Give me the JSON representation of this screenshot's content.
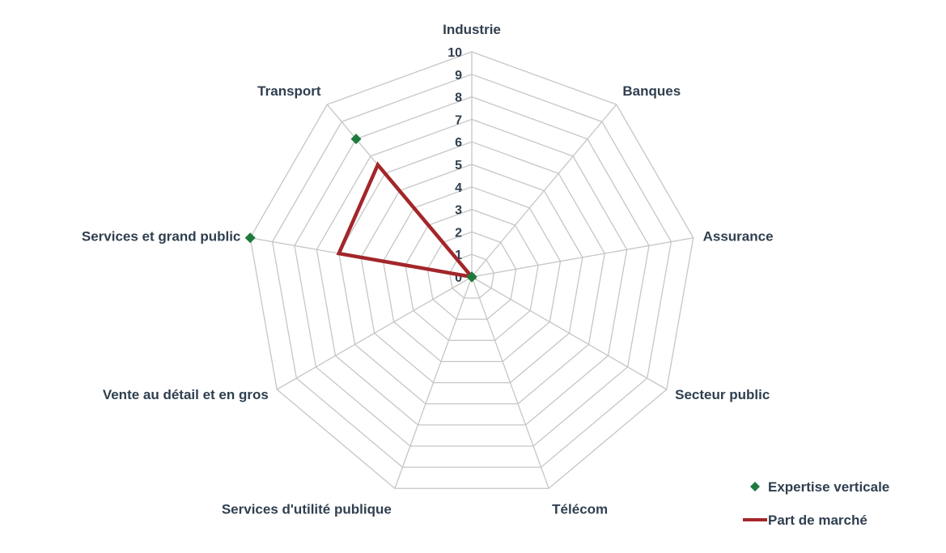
{
  "chart_data": {
    "type": "radar",
    "categories": [
      "Industrie",
      "Banques",
      "Assurance",
      "Secteur public",
      "Télécom",
      "Services d'utilité publique",
      "Vente au détail et en gros",
      "Services et grand public",
      "Transport"
    ],
    "rlim": [
      0,
      10
    ],
    "ticks": [
      0,
      1,
      2,
      3,
      4,
      5,
      6,
      7,
      8,
      9,
      10
    ],
    "grid": true,
    "legend_position": "bottom-right",
    "series": [
      {
        "name": "Expertise verticale",
        "style": "markers",
        "marker": "diamond",
        "color": "#1e7a3c",
        "values": [
          0,
          0,
          0,
          0,
          0,
          0,
          0,
          10,
          8
        ]
      },
      {
        "name": "Part de marché",
        "style": "line",
        "color": "#a3262a",
        "values": [
          0,
          0,
          0,
          0,
          0,
          0,
          0,
          6,
          6.5
        ]
      }
    ]
  }
}
